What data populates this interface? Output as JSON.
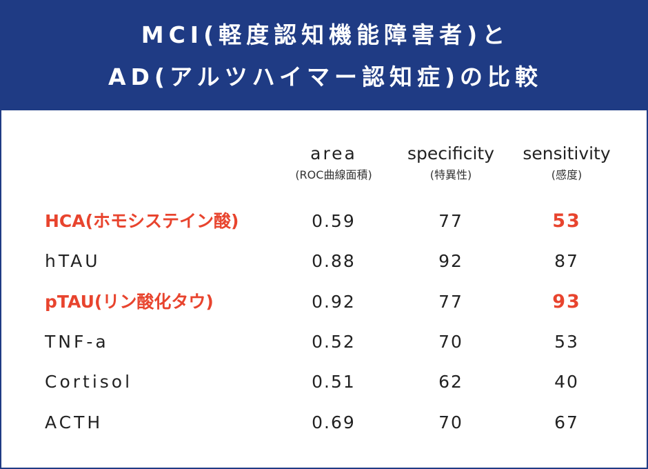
{
  "title": {
    "line1": "MCI(軽度認知機能障害者)と",
    "line2": "AD(アルツハイマー認知症)の比較"
  },
  "columns": {
    "area": {
      "label": "area",
      "sub": "(ROC曲線面積)"
    },
    "specificity": {
      "label": "specificity",
      "sub": "(特異性)"
    },
    "sensitivity": {
      "label": "sensitivity",
      "sub": "(感度)"
    }
  },
  "rows": [
    {
      "name": "HCA(ホモシステイン酸)",
      "area": "0.59",
      "specificity": "77",
      "sensitivity": "53",
      "highlight": true
    },
    {
      "name": "hTAU",
      "area": "0.88",
      "specificity": "92",
      "sensitivity": "87",
      "highlight": false
    },
    {
      "name": "pTAU(リン酸化タウ)",
      "area": "0.92",
      "specificity": "77",
      "sensitivity": "93",
      "highlight": true
    },
    {
      "name": "TNF-a",
      "area": "0.52",
      "specificity": "70",
      "sensitivity": "53",
      "highlight": false
    },
    {
      "name": "Cortisol",
      "area": "0.51",
      "specificity": "62",
      "sensitivity": "40",
      "highlight": false
    },
    {
      "name": "ACTH",
      "area": "0.69",
      "specificity": "70",
      "sensitivity": "67",
      "highlight": false
    }
  ],
  "colors": {
    "header_bg": "#1f3b84",
    "highlight": "#e8442e",
    "text": "#222222"
  }
}
